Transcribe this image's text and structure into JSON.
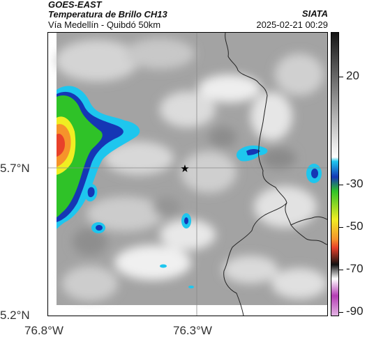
{
  "header": {
    "satellite": "GOES-EAST",
    "product": "Temperatura de Brillo CH13",
    "region": "Vía Medellín - Quibdó 50km",
    "source": "SIATA",
    "datetime": "2025-02-21 00:29"
  },
  "axes": {
    "x_ticks": [
      "76.8°W",
      "76.3°W"
    ],
    "y_ticks": [
      "5.7°N",
      "5.2°N"
    ]
  },
  "colorbar": {
    "labels": [
      "20",
      "-30",
      "-50",
      "-70",
      "-90"
    ]
  },
  "map": {
    "marker": "star",
    "colors": {
      "background": "#9a9a9a",
      "cloud_light": "#eeeeee",
      "cyan": "#1ec6ee",
      "blue": "#1536b5",
      "green": "#2fc228",
      "yellow": "#f0ee22",
      "orange": "#f6932b",
      "red": "#e8412a",
      "border": "#222222"
    }
  }
}
